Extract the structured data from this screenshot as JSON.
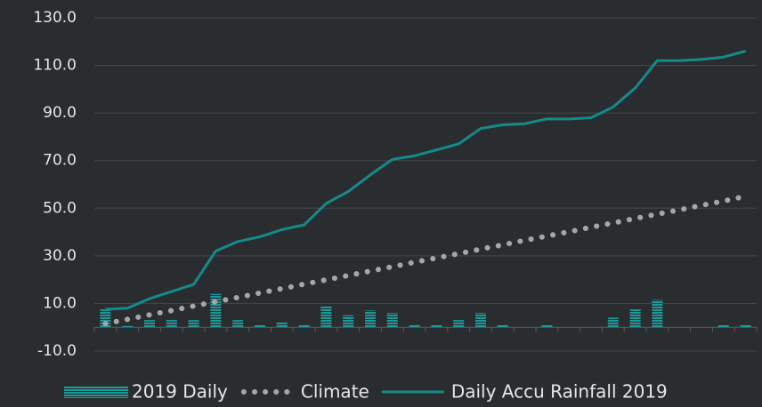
{
  "chart_data": {
    "type": "combo",
    "categories": [
      null,
      null,
      null,
      null,
      null,
      null,
      null,
      null,
      null,
      null,
      null,
      null,
      null,
      null,
      null,
      null,
      null,
      null,
      null,
      null,
      null,
      null,
      null,
      null,
      null,
      null,
      null,
      null,
      null,
      null
    ],
    "series": [
      {
        "name": "2019 Daily",
        "type": "bar",
        "color": "#1a9a9a",
        "values": [
          7.5,
          0.5,
          3,
          3,
          3,
          14,
          3,
          1,
          2,
          1,
          9,
          5,
          7,
          6,
          1,
          1,
          3,
          6,
          1,
          0,
          1,
          0,
          0,
          4,
          7.5,
          11.5,
          0,
          0,
          1,
          1
        ]
      },
      {
        "name": "Climate",
        "type": "dotted-line",
        "color": "#a6a6a6",
        "values": [
          1.5,
          3.3,
          5.2,
          7,
          8.9,
          10.7,
          12.5,
          14.4,
          16.2,
          18.1,
          19.9,
          21.7,
          23.6,
          25.4,
          27.3,
          29.1,
          30.9,
          32.8,
          34.6,
          36.5,
          38.3,
          40.1,
          42,
          43.8,
          45.7,
          47.5,
          49.3,
          51.2,
          53,
          55
        ]
      },
      {
        "name": "Daily Accu Rainfall 2019",
        "type": "line",
        "color": "#148a8a",
        "values": [
          7.5,
          8,
          12,
          15,
          18,
          32,
          36,
          38,
          41,
          43,
          52,
          57,
          64,
          70.5,
          72,
          74.5,
          77,
          83.5,
          85,
          85.5,
          87.5,
          87.5,
          88,
          92.5,
          100.5,
          112,
          112,
          112.5,
          113.5,
          116
        ]
      }
    ],
    "ylim": [
      -10,
      130
    ],
    "yticks": [
      {
        "value": -10,
        "label": "-10.0"
      },
      {
        "value": 10,
        "label": "10.0"
      },
      {
        "value": 30,
        "label": "30.0"
      },
      {
        "value": 50,
        "label": "50.0"
      },
      {
        "value": 70,
        "label": "70.0"
      },
      {
        "value": 90,
        "label": "90.0"
      },
      {
        "value": 110,
        "label": "110.0"
      },
      {
        "value": 130,
        "label": "130.0"
      }
    ],
    "grid": true
  }
}
